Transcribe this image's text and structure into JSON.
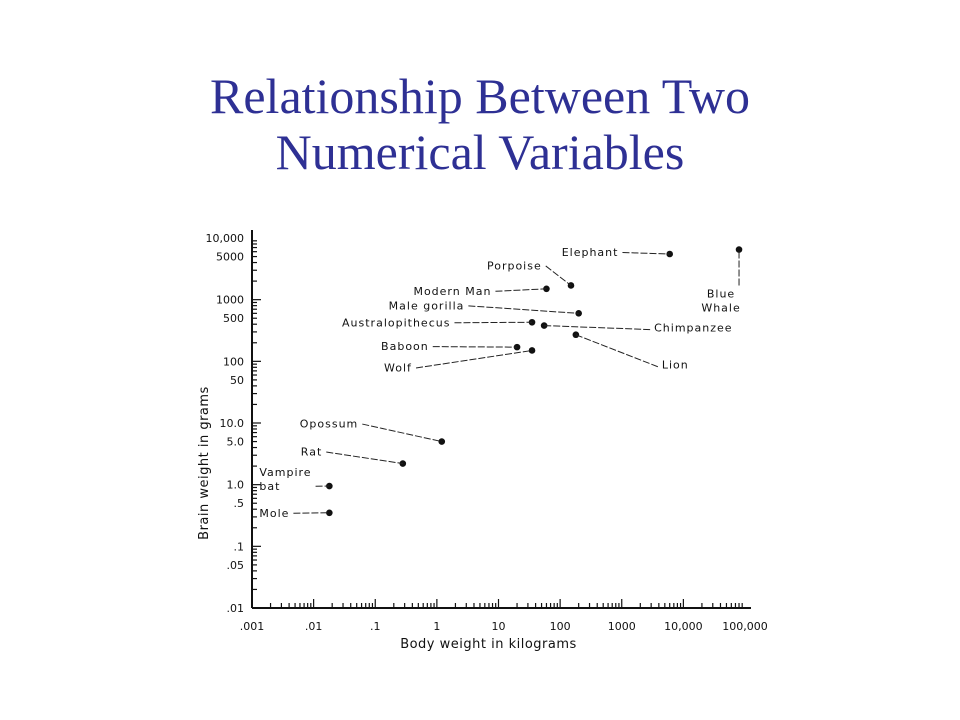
{
  "slide": {
    "title_line1": "Relationship Between Two",
    "title_line2": "Numerical Variables"
  },
  "chart_data": {
    "type": "scatter",
    "title": "",
    "xlabel": "Body weight in kilograms",
    "ylabel": "Brain weight in grams",
    "x_scale": "log",
    "y_scale": "log",
    "xlim": [
      0.001,
      100000
    ],
    "ylim": [
      0.01,
      10000
    ],
    "grid": false,
    "x_tick_labels": [
      {
        "value": 0.001,
        "label": ".001"
      },
      {
        "value": 0.01,
        "label": ".01"
      },
      {
        "value": 0.1,
        "label": ".1"
      },
      {
        "value": 1,
        "label": "1"
      },
      {
        "value": 10,
        "label": "10"
      },
      {
        "value": 100,
        "label": "100"
      },
      {
        "value": 1000,
        "label": "1000"
      },
      {
        "value": 10000,
        "label": "10,000"
      },
      {
        "value": 100000,
        "label": "100,000"
      }
    ],
    "y_tick_labels": [
      {
        "value": 10000,
        "label": "10,000"
      },
      {
        "value": 5000,
        "label": "5000"
      },
      {
        "value": 1000,
        "label": "1000"
      },
      {
        "value": 500,
        "label": "500"
      },
      {
        "value": 100,
        "label": "100"
      },
      {
        "value": 50,
        "label": "50"
      },
      {
        "value": 10,
        "label": "10.0"
      },
      {
        "value": 5,
        "label": "5.0"
      },
      {
        "value": 1,
        "label": "1.0"
      },
      {
        "value": 0.5,
        "label": ".5"
      },
      {
        "value": 0.1,
        "label": ".1"
      },
      {
        "value": 0.05,
        "label": ".05"
      },
      {
        "value": 0.01,
        "label": ".01"
      }
    ],
    "points": [
      {
        "name": "Elephant",
        "x": 6000,
        "y": 5500,
        "label_lines": [
          "Elephant"
        ],
        "label_side": "left"
      },
      {
        "name": "Blue Whale",
        "x": 80000,
        "y": 6500,
        "label_lines": [
          "Blue",
          "Whale"
        ],
        "label_side": "below"
      },
      {
        "name": "Porpoise",
        "x": 150,
        "y": 1700,
        "label_lines": [
          "Porpoise"
        ],
        "label_side": "left"
      },
      {
        "name": "Modern Man",
        "x": 60,
        "y": 1500,
        "label_lines": [
          "Modern Man"
        ],
        "label_side": "left"
      },
      {
        "name": "Male gorilla",
        "x": 200,
        "y": 600,
        "label_lines": [
          "Male gorilla"
        ],
        "label_side": "left"
      },
      {
        "name": "Australopithecus",
        "x": 35,
        "y": 430,
        "label_lines": [
          "Australopithecus"
        ],
        "label_side": "left"
      },
      {
        "name": "Chimpanzee",
        "x": 55,
        "y": 380,
        "label_lines": [
          "Chimpanzee"
        ],
        "label_side": "right"
      },
      {
        "name": "Lion",
        "x": 180,
        "y": 270,
        "label_lines": [
          "Lion"
        ],
        "label_side": "right"
      },
      {
        "name": "Baboon",
        "x": 20,
        "y": 170,
        "label_lines": [
          "Baboon"
        ],
        "label_side": "left"
      },
      {
        "name": "Wolf",
        "x": 35,
        "y": 150,
        "label_lines": [
          "Wolf"
        ],
        "label_side": "left"
      },
      {
        "name": "Opossum",
        "x": 1.2,
        "y": 5,
        "label_lines": [
          "Opossum"
        ],
        "label_side": "left"
      },
      {
        "name": "Rat",
        "x": 0.28,
        "y": 2.2,
        "label_lines": [
          "Rat"
        ],
        "label_side": "left"
      },
      {
        "name": "Vampire bat",
        "x": 0.018,
        "y": 0.95,
        "label_lines": [
          "Vampire",
          "bat"
        ],
        "label_side": "left"
      },
      {
        "name": "Mole",
        "x": 0.018,
        "y": 0.35,
        "label_lines": [
          "Mole"
        ],
        "label_side": "left"
      }
    ]
  }
}
